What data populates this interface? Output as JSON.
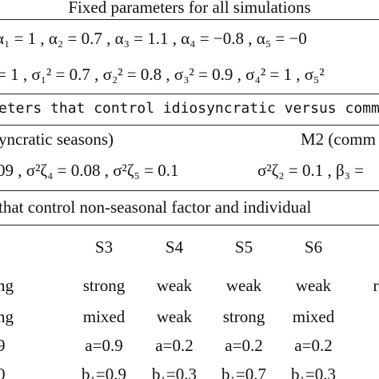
{
  "title": "Fixed parameters for all simulations",
  "fixed_alpha": "α₁ = 1 , α₂ = 0.7 , α₃ = 1.1 , α₄ = −0.8 , α₅ = −0",
  "fixed_sigma": "= 1 , σ₁² = 0.7 , σ₂² = 0.8 , σ₃² = 0.9 , σ₄² = 1 , σ₅²",
  "section2_title": "eters that control idiosyncratic versus common",
  "section2_left_header": "yncratic seasons)",
  "section2_right_header": "M2 (comm",
  "section2_left_values": "09 , σ²ζ₄ = 0.08 , σ²ζ₅ = 0.1",
  "section2_right_values": "σ²ζ₂ = 0.1 , β₃ =",
  "section3_title": "that control non-seasonal factor and individual",
  "table": {
    "headers": [
      "S3",
      "S4",
      "S5",
      "S6"
    ],
    "rows": [
      [
        "ng",
        "strong",
        "weak",
        "weak",
        "weak",
        "r"
      ],
      [
        "ng",
        "mixed",
        "weak",
        "strong",
        "mixed",
        ""
      ],
      [
        "9",
        "a=0.9",
        "a=0.2",
        "a=0.2",
        "a=0.2",
        ""
      ],
      [
        "0",
        "b₁=0.9",
        "b₁=0.3",
        "b₁=0.7",
        "b₁=0.3",
        ""
      ]
    ]
  }
}
